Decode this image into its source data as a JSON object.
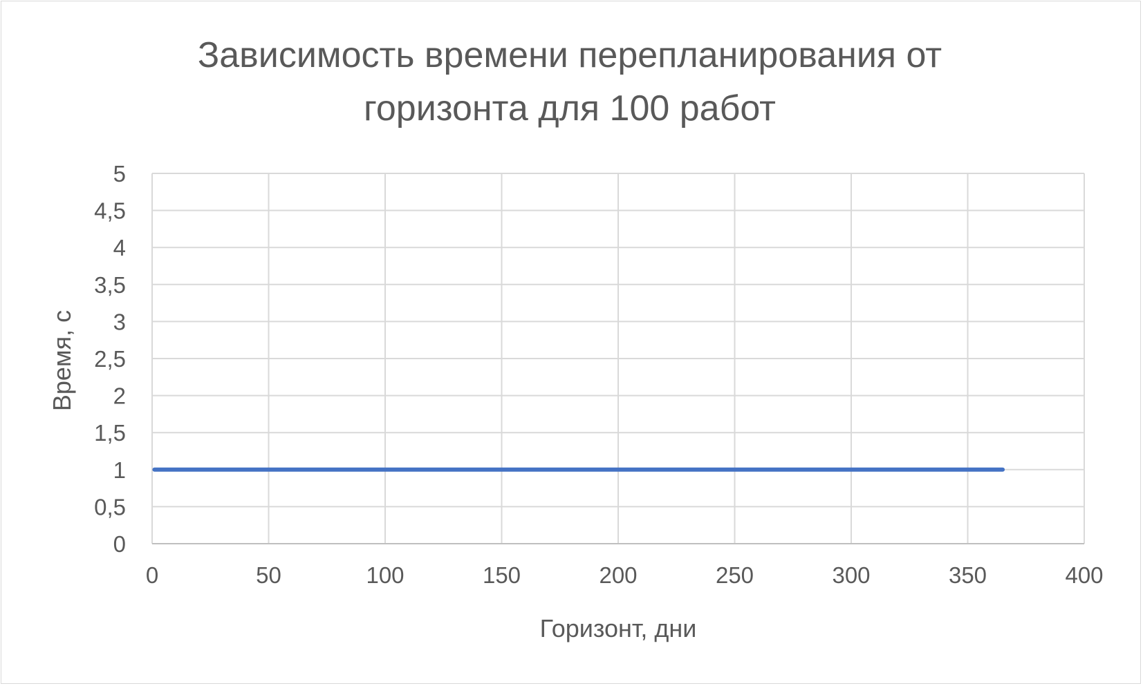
{
  "chart_data": {
    "type": "line",
    "title": "Зависимость времени перепланирования от горизонта для 100 работ",
    "title_lines": [
      "Зависимость времени перепланирования от",
      "горизонта для 100 работ"
    ],
    "xlabel": "Горизонт, дни",
    "ylabel": "Время, с",
    "xlim": [
      0,
      400
    ],
    "ylim": [
      0,
      5
    ],
    "x_ticks": [
      "0",
      "50",
      "100",
      "150",
      "200",
      "250",
      "300",
      "350",
      "400"
    ],
    "y_ticks": [
      "0",
      "0,5",
      "1",
      "1,5",
      "2",
      "2,5",
      "3",
      "3,5",
      "4",
      "4,5",
      "5"
    ],
    "grid": true,
    "legend": "none",
    "series": [
      {
        "color": "#4472c4",
        "x": [
          1,
          365
        ],
        "y": [
          1,
          1
        ]
      }
    ]
  }
}
